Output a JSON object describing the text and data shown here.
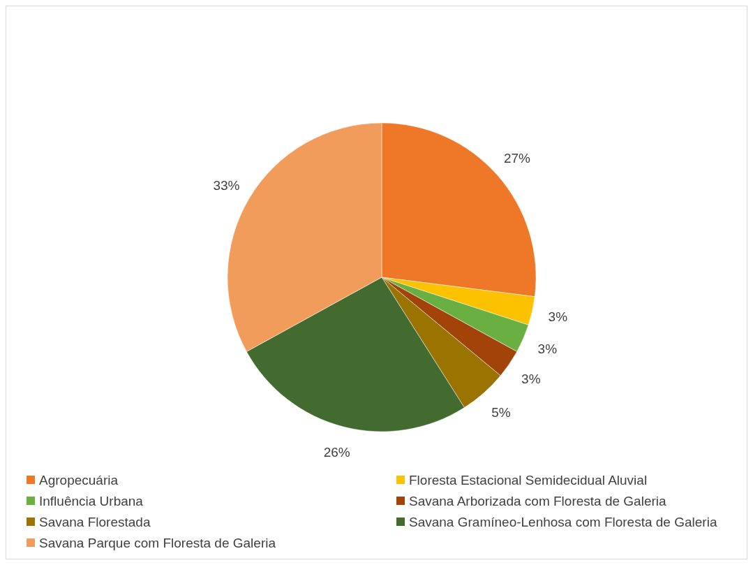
{
  "chart_data": {
    "type": "pie",
    "categories": [
      "Agropecuária",
      "Floresta Estacional Semidecidual Aluvial",
      "Influência Urbana",
      "Savana Arborizada com Floresta de Galeria",
      "Savana Florestada",
      "Savana Gramíneo-Lenhosa com Floresta de Galeria",
      "Savana Parque com Floresta de Galeria"
    ],
    "values": [
      27,
      3,
      3,
      3,
      5,
      26,
      33
    ],
    "colors": [
      "#ee7828",
      "#fcc200",
      "#6aaf41",
      "#a24409",
      "#9a7300",
      "#436b2f",
      "#f29c5c"
    ],
    "value_labels": [
      "27%",
      "3%",
      "3%",
      "3%",
      "5%",
      "26%",
      "33%"
    ],
    "legend": "bottom"
  }
}
